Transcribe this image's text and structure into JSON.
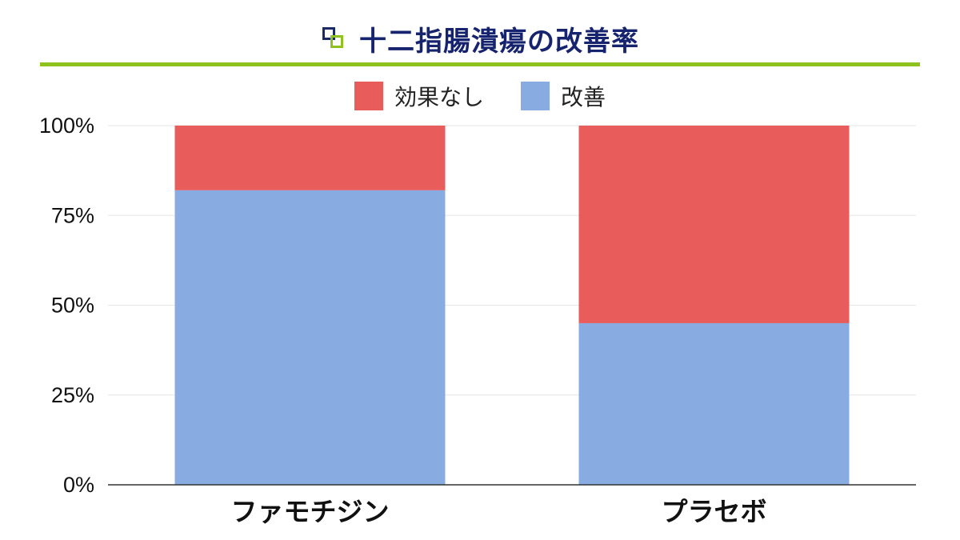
{
  "header": {
    "title": "十二指腸潰瘍の改善率",
    "icon": "overlapping-squares-icon"
  },
  "colors": {
    "no_effect": "#e85c5c",
    "improved": "#88ace2",
    "title_text": "#16236e",
    "accent_rule": "#8dc21f",
    "icon_dark": "#1a2a66",
    "icon_light": "#8dc21f"
  },
  "chart_data": {
    "type": "bar",
    "stacked": true,
    "title": "十二指腸潰瘍の改善率",
    "categories": [
      "ファモチジン",
      "プラセボ"
    ],
    "series": [
      {
        "name": "改善",
        "values": [
          82,
          45
        ],
        "color": "#88ace2"
      },
      {
        "name": "効果なし",
        "values": [
          18,
          55
        ],
        "color": "#e85c5c"
      }
    ],
    "y_ticks": [
      "0%",
      "25%",
      "50%",
      "75%",
      "100%"
    ],
    "ylim": [
      0,
      100
    ],
    "y_unit": "%",
    "xlabel": "",
    "ylabel": "",
    "grid": true,
    "legend": {
      "position": "top-center",
      "entries": [
        {
          "label": "効果なし",
          "color": "#e85c5c"
        },
        {
          "label": "改善",
          "color": "#88ace2"
        }
      ]
    }
  }
}
